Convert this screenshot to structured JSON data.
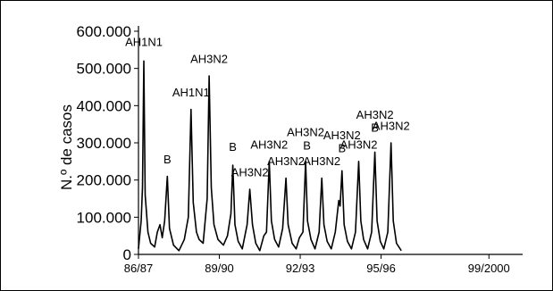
{
  "chart_data": {
    "type": "line",
    "title": "",
    "xlabel": "",
    "ylabel": "N.º de casos",
    "ylim": [
      0,
      600000
    ],
    "yticks": [
      {
        "value": 0,
        "label": "0"
      },
      {
        "value": 100000,
        "label": "100.000"
      },
      {
        "value": 200000,
        "label": "200.000"
      },
      {
        "value": 300000,
        "label": "300.000"
      },
      {
        "value": 400000,
        "label": "400.000"
      },
      {
        "value": 500000,
        "label": "500.000"
      },
      {
        "value": 600000,
        "label": "600.000"
      }
    ],
    "xlim": [
      1986.75,
      2001.0
    ],
    "xticks": [
      {
        "value": 1986.75,
        "label": "86/87"
      },
      {
        "value": 1989.75,
        "label": "89/90"
      },
      {
        "value": 1992.75,
        "label": "92/93"
      },
      {
        "value": 1995.75,
        "label": "95/96"
      },
      {
        "value": 1999.75,
        "label": "99/2000"
      }
    ],
    "series": [
      {
        "values": [
          [
            1986.75,
            15000
          ],
          [
            1986.85,
            90000
          ],
          [
            1986.9,
            180000
          ],
          [
            1986.95,
            520000
          ],
          [
            1987.0,
            160000
          ],
          [
            1987.1,
            60000
          ],
          [
            1987.2,
            30000
          ],
          [
            1987.35,
            20000
          ],
          [
            1987.45,
            60000
          ],
          [
            1987.55,
            80000
          ],
          [
            1987.63,
            45000
          ],
          [
            1987.72,
            90000
          ],
          [
            1987.82,
            210000
          ],
          [
            1987.9,
            70000
          ],
          [
            1988.05,
            25000
          ],
          [
            1988.25,
            10000
          ],
          [
            1988.45,
            40000
          ],
          [
            1988.6,
            100000
          ],
          [
            1988.7,
            390000
          ],
          [
            1988.78,
            140000
          ],
          [
            1988.9,
            60000
          ],
          [
            1989.0,
            40000
          ],
          [
            1989.15,
            30000
          ],
          [
            1989.3,
            150000
          ],
          [
            1989.37,
            480000
          ],
          [
            1989.45,
            180000
          ],
          [
            1989.55,
            80000
          ],
          [
            1989.7,
            40000
          ],
          [
            1989.9,
            25000
          ],
          [
            1990.05,
            50000
          ],
          [
            1990.18,
            110000
          ],
          [
            1990.25,
            240000
          ],
          [
            1990.33,
            80000
          ],
          [
            1990.45,
            35000
          ],
          [
            1990.6,
            15000
          ],
          [
            1990.78,
            80000
          ],
          [
            1990.88,
            175000
          ],
          [
            1990.98,
            80000
          ],
          [
            1991.1,
            30000
          ],
          [
            1991.25,
            10000
          ],
          [
            1991.4,
            50000
          ],
          [
            1991.5,
            60000
          ],
          [
            1991.6,
            250000
          ],
          [
            1991.68,
            90000
          ],
          [
            1991.8,
            40000
          ],
          [
            1991.95,
            20000
          ],
          [
            1992.1,
            70000
          ],
          [
            1992.22,
            205000
          ],
          [
            1992.3,
            80000
          ],
          [
            1992.45,
            30000
          ],
          [
            1992.6,
            15000
          ],
          [
            1992.72,
            45000
          ],
          [
            1992.85,
            60000
          ],
          [
            1992.95,
            250000
          ],
          [
            1993.02,
            90000
          ],
          [
            1993.15,
            40000
          ],
          [
            1993.3,
            15000
          ],
          [
            1993.45,
            60000
          ],
          [
            1993.55,
            205000
          ],
          [
            1993.63,
            80000
          ],
          [
            1993.75,
            35000
          ],
          [
            1993.9,
            15000
          ],
          [
            1994.05,
            60000
          ],
          [
            1994.18,
            145000
          ],
          [
            1994.23,
            130000
          ],
          [
            1994.3,
            225000
          ],
          [
            1994.38,
            80000
          ],
          [
            1994.5,
            35000
          ],
          [
            1994.65,
            15000
          ],
          [
            1994.8,
            60000
          ],
          [
            1994.92,
            250000
          ],
          [
            1995.0,
            90000
          ],
          [
            1995.1,
            40000
          ],
          [
            1995.25,
            15000
          ],
          [
            1995.4,
            60000
          ],
          [
            1995.52,
            275000
          ],
          [
            1995.6,
            90000
          ],
          [
            1995.72,
            35000
          ],
          [
            1995.85,
            15000
          ],
          [
            1996.0,
            60000
          ],
          [
            1996.12,
            300000
          ],
          [
            1996.2,
            90000
          ],
          [
            1996.32,
            30000
          ],
          [
            1996.5,
            10000
          ]
        ]
      }
    ],
    "annotations": [
      {
        "text": "AH1N1",
        "x": 1986.95,
        "y": 560000
      },
      {
        "text": "B",
        "x": 1987.82,
        "y": 245000
      },
      {
        "text": "AH1N1",
        "x": 1988.7,
        "y": 425000
      },
      {
        "text": "AH3N2",
        "x": 1989.37,
        "y": 515000
      },
      {
        "text": "B",
        "x": 1990.25,
        "y": 278000
      },
      {
        "text": "AH3N2",
        "x": 1990.88,
        "y": 210000
      },
      {
        "text": "AH3N2",
        "x": 1991.6,
        "y": 285000
      },
      {
        "text": "AH3N2",
        "x": 1992.22,
        "y": 240000
      },
      {
        "text": "AH3N2",
        "x": 1992.95,
        "y": 318000
      },
      {
        "text": "B",
        "x": 1993.0,
        "y": 282000
      },
      {
        "text": "AH3N2",
        "x": 1993.55,
        "y": 240000
      },
      {
        "text": "AH3N2",
        "x": 1994.3,
        "y": 310000
      },
      {
        "text": "B",
        "x": 1994.3,
        "y": 275000
      },
      {
        "text": "AH3N2",
        "x": 1994.92,
        "y": 285000
      },
      {
        "text": "AH3N2",
        "x": 1995.52,
        "y": 365000
      },
      {
        "text": "B",
        "x": 1995.52,
        "y": 330000
      },
      {
        "text": "AH3N2",
        "x": 1996.12,
        "y": 335000
      }
    ]
  }
}
